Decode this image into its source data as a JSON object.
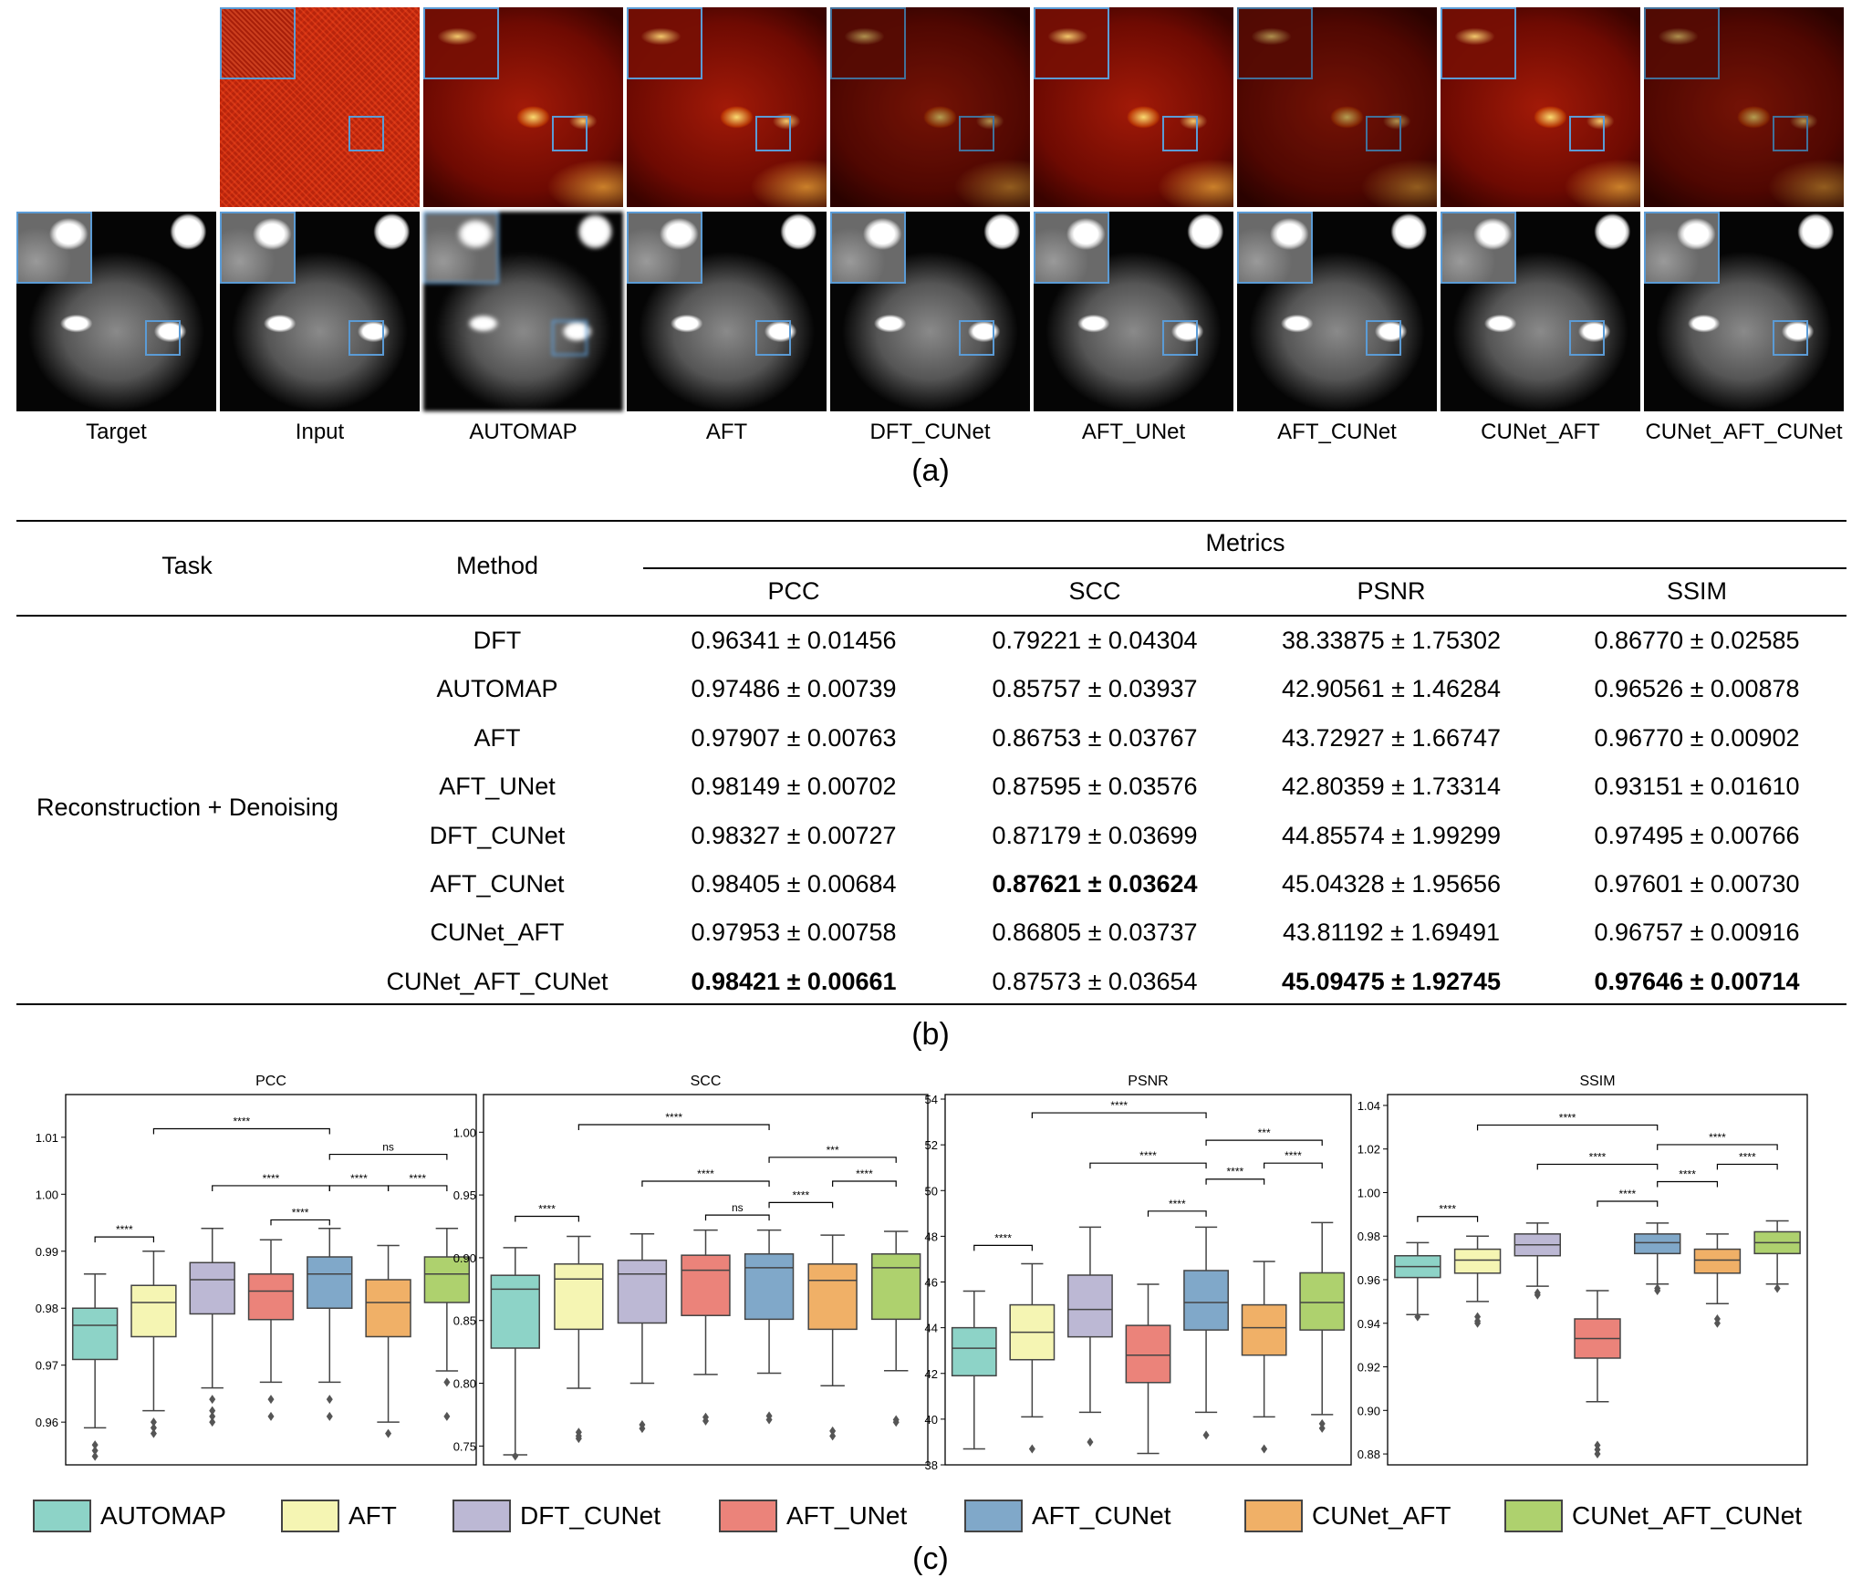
{
  "figure": {
    "panel_a": {
      "label": "(a)",
      "columns": [
        "Target",
        "Input",
        "AUTOMAP",
        "AFT",
        "DFT_CUNet",
        "AFT_UNet",
        "AFT_CUNet",
        "CUNet_AFT",
        "CUNet_AFT_CUNet"
      ]
    },
    "panel_b": {
      "label": "(b)",
      "headers": {
        "task": "Task",
        "method": "Method",
        "metrics": "Metrics",
        "pcc": "PCC",
        "scc": "SCC",
        "psnr": "PSNR",
        "ssim": "SSIM"
      },
      "task": "Reconstruction + Denoising",
      "rows": [
        {
          "method": "DFT",
          "pcc": "0.96341 ± 0.01456",
          "scc": "0.79221 ± 0.04304",
          "psnr": "38.33875 ± 1.75302",
          "ssim": "0.86770 ± 0.02585"
        },
        {
          "method": "AUTOMAP",
          "pcc": "0.97486 ± 0.00739",
          "scc": "0.85757 ± 0.03937",
          "psnr": "42.90561 ± 1.46284",
          "ssim": "0.96526 ± 0.00878"
        },
        {
          "method": "AFT",
          "pcc": "0.97907 ± 0.00763",
          "scc": "0.86753 ± 0.03767",
          "psnr": "43.72927 ± 1.66747",
          "ssim": "0.96770 ± 0.00902"
        },
        {
          "method": "AFT_UNet",
          "pcc": "0.98149 ± 0.00702",
          "scc": "0.87595 ± 0.03576",
          "psnr": "42.80359 ± 1.73314",
          "ssim": "0.93151 ± 0.01610"
        },
        {
          "method": "DFT_CUNet",
          "pcc": "0.98327 ± 0.00727",
          "scc": "0.87179 ± 0.03699",
          "psnr": "44.85574 ± 1.99299",
          "ssim": "0.97495 ± 0.00766"
        },
        {
          "method": "AFT_CUNet",
          "pcc": "0.98405 ± 0.00684",
          "scc": "0.87621 ± 0.03624",
          "psnr": "45.04328 ± 1.95656",
          "ssim": "0.97601 ± 0.00730"
        },
        {
          "method": "CUNet_AFT",
          "pcc": "0.97953 ± 0.00758",
          "scc": "0.86805 ± 0.03737",
          "psnr": "43.81192 ± 1.69491",
          "ssim": "0.96757 ± 0.00916"
        },
        {
          "method": "CUNet_AFT_CUNet",
          "pcc": "0.98421 ± 0.00661",
          "scc": "0.87573 ± 0.03654",
          "psnr": "45.09475 ± 1.92745",
          "ssim": "0.97646 ± 0.00714"
        }
      ]
    },
    "panel_c": {
      "label": "(c)",
      "legend": [
        {
          "name": "AUTOMAP",
          "color": "#8dd3c7"
        },
        {
          "name": "AFT",
          "color": "#f5f5b3"
        },
        {
          "name": "DFT_CUNet",
          "color": "#bcb8d4"
        },
        {
          "name": "AFT_UNet",
          "color": "#eb837a"
        },
        {
          "name": "AFT_CUNet",
          "color": "#80a8c9"
        },
        {
          "name": "CUNet_AFT",
          "color": "#f0b067"
        },
        {
          "name": "CUNet_AFT_CUNet",
          "color": "#aed16e"
        }
      ]
    }
  },
  "chart_data": [
    {
      "type": "box",
      "title": "PCC",
      "ylim": [
        0.9525,
        1.0175
      ],
      "yticks": [
        0.96,
        0.97,
        0.98,
        0.99,
        1.0,
        1.01
      ],
      "ytick_labels": [
        "0.96",
        "0.97",
        "0.98",
        "0.99",
        "1.00",
        "1.01"
      ],
      "boxes": [
        {
          "name": "AUTOMAP",
          "wlo": 0.959,
          "q1": 0.971,
          "med": 0.977,
          "q3": 0.98,
          "whi": 0.986,
          "outliers": [
            0.956,
            0.955,
            0.954
          ]
        },
        {
          "name": "AFT",
          "wlo": 0.962,
          "q1": 0.975,
          "med": 0.981,
          "q3": 0.984,
          "whi": 0.99,
          "outliers": [
            0.96,
            0.959,
            0.958
          ]
        },
        {
          "name": "DFT_CUNet",
          "wlo": 0.966,
          "q1": 0.979,
          "med": 0.985,
          "q3": 0.988,
          "whi": 0.994,
          "outliers": [
            0.964,
            0.962,
            0.961,
            0.96
          ]
        },
        {
          "name": "AFT_UNet",
          "wlo": 0.967,
          "q1": 0.978,
          "med": 0.983,
          "q3": 0.986,
          "whi": 0.992,
          "outliers": [
            0.964,
            0.961
          ]
        },
        {
          "name": "AFT_CUNet",
          "wlo": 0.967,
          "q1": 0.98,
          "med": 0.986,
          "q3": 0.989,
          "whi": 0.994,
          "outliers": [
            0.964,
            0.961
          ]
        },
        {
          "name": "CUNet_AFT",
          "wlo": 0.96,
          "q1": 0.975,
          "med": 0.981,
          "q3": 0.985,
          "whi": 0.991,
          "outliers": [
            0.958
          ]
        },
        {
          "name": "CUNet_AFT_CUNet",
          "wlo": 0.969,
          "q1": 0.981,
          "med": 0.986,
          "q3": 0.989,
          "whi": 0.994,
          "outliers": [
            0.967,
            0.961
          ]
        }
      ],
      "annotations": [
        {
          "from": 0,
          "to": 1,
          "level": 0.9925,
          "text": "****"
        },
        {
          "from": 3,
          "to": 4,
          "level": 0.9955,
          "text": "****"
        },
        {
          "from": 4,
          "to": 5,
          "level": 1.0015,
          "text": "****"
        },
        {
          "from": 5,
          "to": 6,
          "level": 1.0015,
          "text": "****"
        },
        {
          "from": 2,
          "to": 4,
          "level": 1.0015,
          "text": "****"
        },
        {
          "from": 4,
          "to": 6,
          "level": 1.007,
          "text": "ns"
        },
        {
          "from": 1,
          "to": 4,
          "level": 1.0115,
          "text": "****"
        }
      ]
    },
    {
      "type": "box",
      "title": "SCC",
      "ylim": [
        0.735,
        1.03
      ],
      "yticks": [
        0.75,
        0.8,
        0.85,
        0.9,
        0.95,
        1.0
      ],
      "ytick_labels": [
        "0.75",
        "0.80",
        "0.85",
        "0.90",
        "0.95",
        "1.00"
      ],
      "boxes": [
        {
          "name": "AUTOMAP",
          "wlo": 0.743,
          "q1": 0.828,
          "med": 0.875,
          "q3": 0.886,
          "whi": 0.908,
          "outliers": [
            0.742
          ]
        },
        {
          "name": "AFT",
          "wlo": 0.796,
          "q1": 0.843,
          "med": 0.883,
          "q3": 0.895,
          "whi": 0.917,
          "outliers": [
            0.761,
            0.758,
            0.756
          ]
        },
        {
          "name": "DFT_CUNet",
          "wlo": 0.8,
          "q1": 0.848,
          "med": 0.887,
          "q3": 0.898,
          "whi": 0.919,
          "outliers": [
            0.767,
            0.764
          ]
        },
        {
          "name": "AFT_UNet",
          "wlo": 0.807,
          "q1": 0.854,
          "med": 0.89,
          "q3": 0.902,
          "whi": 0.922,
          "outliers": [
            0.773,
            0.77
          ]
        },
        {
          "name": "AFT_CUNet",
          "wlo": 0.808,
          "q1": 0.851,
          "med": 0.892,
          "q3": 0.903,
          "whi": 0.922,
          "outliers": [
            0.774,
            0.771
          ]
        },
        {
          "name": "CUNet_AFT",
          "wlo": 0.798,
          "q1": 0.843,
          "med": 0.882,
          "q3": 0.895,
          "whi": 0.918,
          "outliers": [
            0.762,
            0.758
          ]
        },
        {
          "name": "CUNet_AFT_CUNet",
          "wlo": 0.81,
          "q1": 0.851,
          "med": 0.892,
          "q3": 0.903,
          "whi": 0.921,
          "outliers": [
            0.771,
            0.769
          ]
        }
      ],
      "annotations": [
        {
          "from": 0,
          "to": 1,
          "level": 0.933,
          "text": "****"
        },
        {
          "from": 3,
          "to": 4,
          "level": 0.934,
          "text": "ns"
        },
        {
          "from": 4,
          "to": 5,
          "level": 0.944,
          "text": "****"
        },
        {
          "from": 5,
          "to": 6,
          "level": 0.961,
          "text": "****"
        },
        {
          "from": 2,
          "to": 4,
          "level": 0.961,
          "text": "****"
        },
        {
          "from": 4,
          "to": 6,
          "level": 0.98,
          "text": "***"
        },
        {
          "from": 1,
          "to": 4,
          "level": 1.006,
          "text": "****"
        }
      ]
    },
    {
      "type": "box",
      "title": "PSNR",
      "ylim": [
        38,
        54.2
      ],
      "yticks": [
        38,
        40,
        42,
        44,
        46,
        48,
        50,
        52,
        54
      ],
      "ytick_labels": [
        "38",
        "40",
        "42",
        "44",
        "46",
        "48",
        "50",
        "52",
        "54"
      ],
      "boxes": [
        {
          "name": "AUTOMAP",
          "wlo": 38.7,
          "q1": 41.9,
          "med": 43.1,
          "q3": 44.0,
          "whi": 45.6,
          "outliers": []
        },
        {
          "name": "AFT",
          "wlo": 40.1,
          "q1": 42.6,
          "med": 43.8,
          "q3": 45.0,
          "whi": 46.8,
          "outliers": [
            38.7
          ]
        },
        {
          "name": "DFT_CUNet",
          "wlo": 40.3,
          "q1": 43.6,
          "med": 44.8,
          "q3": 46.3,
          "whi": 48.4,
          "outliers": [
            39.0
          ]
        },
        {
          "name": "AFT_UNet",
          "wlo": 38.5,
          "q1": 41.6,
          "med": 42.8,
          "q3": 44.1,
          "whi": 45.9,
          "outliers": []
        },
        {
          "name": "AFT_CUNet",
          "wlo": 40.3,
          "q1": 43.9,
          "med": 45.1,
          "q3": 46.5,
          "whi": 48.4,
          "outliers": [
            39.3
          ]
        },
        {
          "name": "CUNet_AFT",
          "wlo": 40.1,
          "q1": 42.8,
          "med": 44.0,
          "q3": 45.0,
          "whi": 46.9,
          "outliers": [
            38.7
          ]
        },
        {
          "name": "CUNet_AFT_CUNet",
          "wlo": 40.2,
          "q1": 43.9,
          "med": 45.1,
          "q3": 46.4,
          "whi": 48.6,
          "outliers": [
            39.8,
            39.6
          ]
        }
      ],
      "annotations": [
        {
          "from": 0,
          "to": 1,
          "level": 47.6,
          "text": "****"
        },
        {
          "from": 3,
          "to": 4,
          "level": 49.1,
          "text": "****"
        },
        {
          "from": 4,
          "to": 5,
          "level": 50.5,
          "text": "****"
        },
        {
          "from": 5,
          "to": 6,
          "level": 51.2,
          "text": "****"
        },
        {
          "from": 2,
          "to": 4,
          "level": 51.2,
          "text": "****"
        },
        {
          "from": 4,
          "to": 6,
          "level": 52.2,
          "text": "***"
        },
        {
          "from": 1,
          "to": 4,
          "level": 53.4,
          "text": "****"
        }
      ]
    },
    {
      "type": "box",
      "title": "SSIM",
      "ylim": [
        0.875,
        1.045
      ],
      "yticks": [
        0.88,
        0.9,
        0.92,
        0.94,
        0.96,
        0.98,
        1.0,
        1.02,
        1.04
      ],
      "ytick_labels": [
        "0.88",
        "0.90",
        "0.92",
        "0.94",
        "0.96",
        "0.98",
        "1.00",
        "1.02",
        "1.04"
      ],
      "boxes": [
        {
          "name": "AUTOMAP",
          "wlo": 0.944,
          "q1": 0.961,
          "med": 0.966,
          "q3": 0.971,
          "whi": 0.977,
          "outliers": [
            0.943
          ]
        },
        {
          "name": "AFT",
          "wlo": 0.95,
          "q1": 0.963,
          "med": 0.969,
          "q3": 0.974,
          "whi": 0.98,
          "outliers": [
            0.943,
            0.941,
            0.94
          ]
        },
        {
          "name": "DFT_CUNet",
          "wlo": 0.957,
          "q1": 0.971,
          "med": 0.976,
          "q3": 0.981,
          "whi": 0.986,
          "outliers": [
            0.954,
            0.953
          ]
        },
        {
          "name": "AFT_UNet",
          "wlo": 0.904,
          "q1": 0.924,
          "med": 0.933,
          "q3": 0.942,
          "whi": 0.955,
          "outliers": [
            0.884,
            0.882,
            0.88
          ]
        },
        {
          "name": "AFT_CUNet",
          "wlo": 0.958,
          "q1": 0.972,
          "med": 0.977,
          "q3": 0.981,
          "whi": 0.986,
          "outliers": [
            0.956,
            0.955
          ]
        },
        {
          "name": "CUNet_AFT",
          "wlo": 0.949,
          "q1": 0.963,
          "med": 0.969,
          "q3": 0.974,
          "whi": 0.981,
          "outliers": [
            0.942,
            0.94
          ]
        },
        {
          "name": "CUNet_AFT_CUNet",
          "wlo": 0.958,
          "q1": 0.972,
          "med": 0.977,
          "q3": 0.982,
          "whi": 0.987,
          "outliers": [
            0.956
          ]
        }
      ],
      "annotations": [
        {
          "from": 0,
          "to": 1,
          "level": 0.989,
          "text": "****"
        },
        {
          "from": 3,
          "to": 4,
          "level": 0.996,
          "text": "****"
        },
        {
          "from": 4,
          "to": 5,
          "level": 1.005,
          "text": "****"
        },
        {
          "from": 5,
          "to": 6,
          "level": 1.013,
          "text": "****"
        },
        {
          "from": 2,
          "to": 4,
          "level": 1.013,
          "text": "****"
        },
        {
          "from": 4,
          "to": 6,
          "level": 1.022,
          "text": "****"
        },
        {
          "from": 1,
          "to": 4,
          "level": 1.031,
          "text": "****"
        }
      ]
    }
  ]
}
